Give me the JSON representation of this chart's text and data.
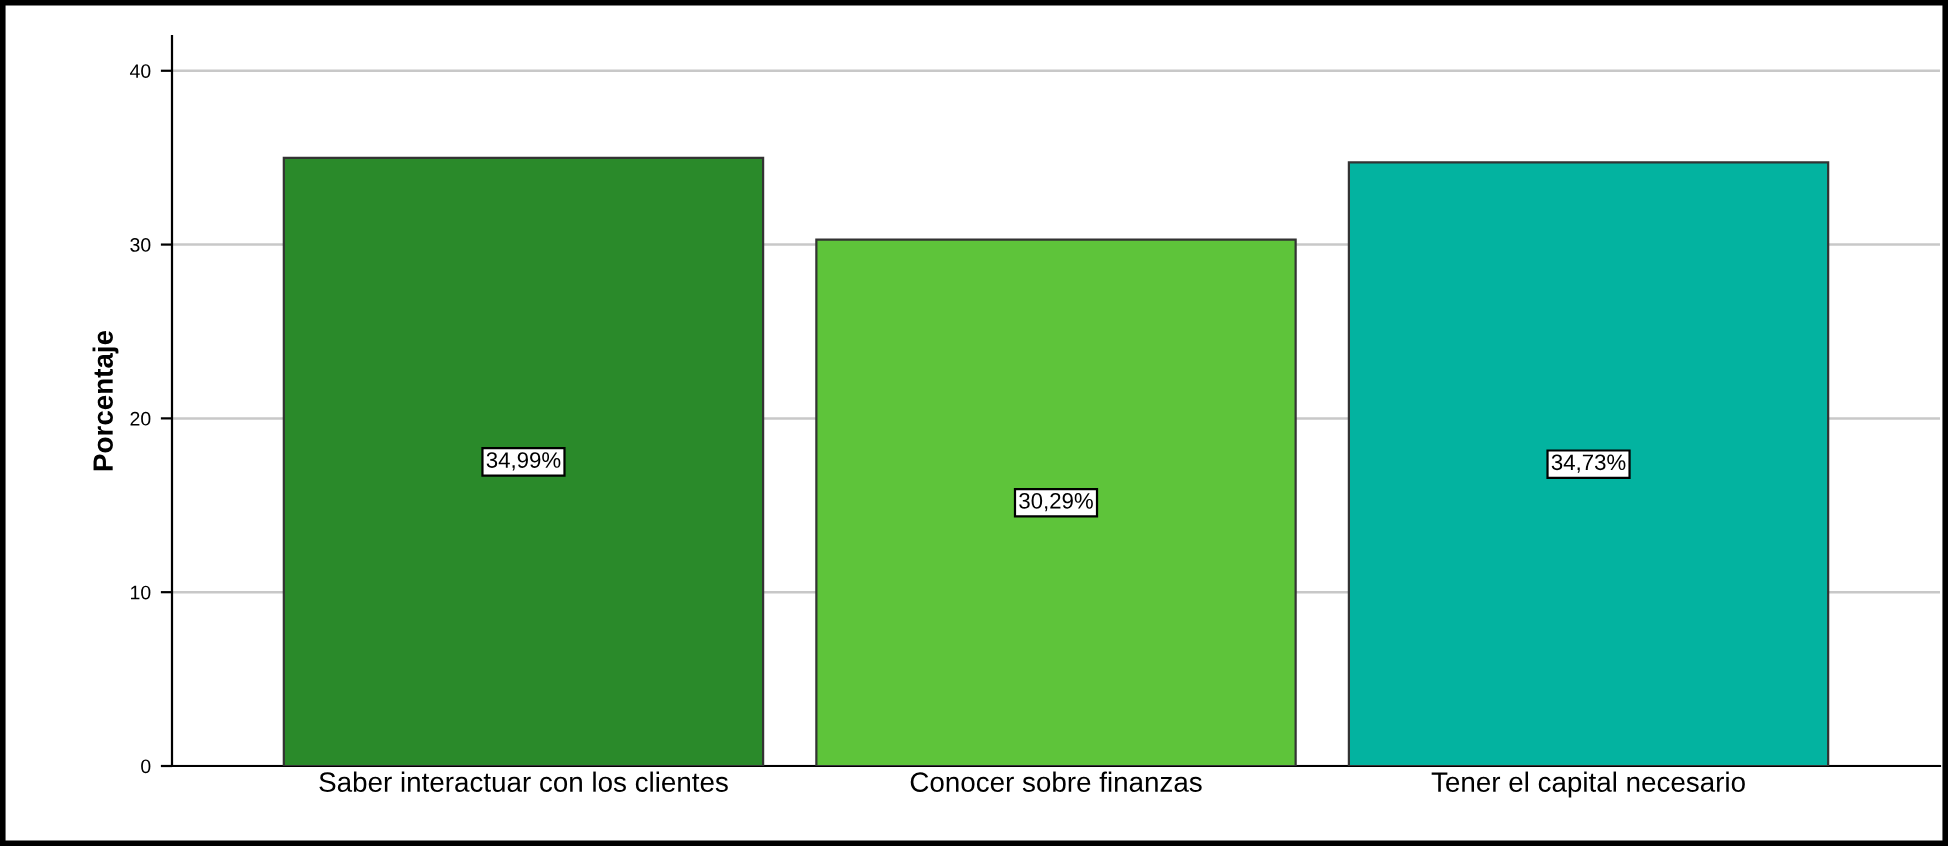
{
  "chart_data": {
    "type": "bar",
    "ylabel": "Porcentaje",
    "categories": [
      "Saber interactuar con los clientes",
      "Conocer sobre finanzas",
      "Tener el capital necesario"
    ],
    "values": [
      34.99,
      30.29,
      34.73
    ],
    "colors": [
      "#2a8a2a",
      "#5ec43a",
      "#03b3a0"
    ],
    "value_labels": [
      "34,99%",
      "30,29%",
      "34,73%"
    ],
    "ylim": [
      0,
      42
    ],
    "yticks": [
      0,
      10,
      20,
      30,
      40
    ],
    "grid": "y",
    "legend": false
  }
}
